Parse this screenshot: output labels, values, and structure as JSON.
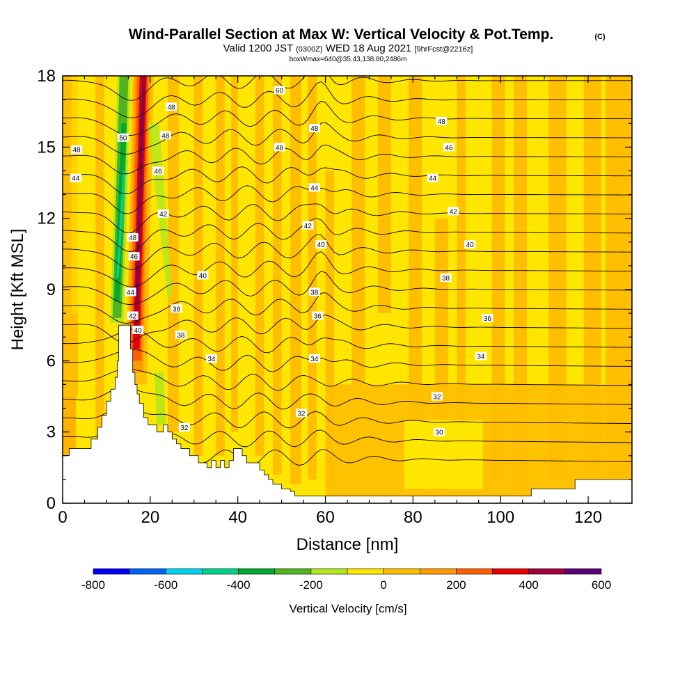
{
  "chart_data": {
    "type": "heatmap",
    "title": "Wind-Parallel Section at Max W: Vertical Velocity & Pot.Temp.",
    "title_mark": "(C)",
    "subtitle_parts": [
      "Valid 1200 JST",
      "(0300Z)",
      "WED 18 Aug 2021",
      "[9hrFcst@2216z]"
    ],
    "subtitle2": "boxWmax=640@35.43,138.80,2486m",
    "xlabel": "Distance [nm]",
    "ylabel": "Height [Kft MSL]",
    "xlim": [
      0,
      130
    ],
    "ylim": [
      0,
      18
    ],
    "xticks": [
      0,
      20,
      40,
      60,
      80,
      100,
      120
    ],
    "xtick_labels": [
      "0",
      "20",
      "40",
      "60",
      "80",
      "100",
      "120"
    ],
    "yticks": [
      0,
      3,
      6,
      9,
      12,
      15,
      18
    ],
    "ytick_labels": [
      "0",
      "3",
      "6",
      "9",
      "12",
      "15",
      "18"
    ],
    "colorbar": {
      "label": "Vertical Velocity [cm/s]",
      "colors": [
        "#0000f0",
        "#0064f0",
        "#00d2f0",
        "#00d28c",
        "#00aa32",
        "#50b41e",
        "#b4e61e",
        "#ffe600",
        "#ffbe00",
        "#ff9b00",
        "#ff5f00",
        "#e60000",
        "#a0003c",
        "#5a0078"
      ],
      "tick_values": [
        -800,
        -600,
        -400,
        -200,
        0,
        200,
        400,
        600
      ],
      "tick_labels": [
        "-800",
        "-600",
        "-400",
        "-200",
        "0",
        "200",
        "400",
        "600"
      ]
    },
    "terrain": [
      [
        0,
        2
      ],
      [
        1.5,
        2
      ],
      [
        1.5,
        2.3
      ],
      [
        6.5,
        2.3
      ],
      [
        6.5,
        2.7
      ],
      [
        8,
        2.7
      ],
      [
        8,
        3.2
      ],
      [
        9,
        3.2
      ],
      [
        9,
        3.7
      ],
      [
        10,
        3.7
      ],
      [
        10,
        4.3
      ],
      [
        11,
        4.3
      ],
      [
        11,
        4.8
      ],
      [
        12,
        4.8
      ],
      [
        12,
        5.3
      ],
      [
        12.5,
        5.3
      ],
      [
        12.5,
        6
      ],
      [
        12.8,
        6
      ],
      [
        12.8,
        7.5
      ],
      [
        15.5,
        7.5
      ],
      [
        15.5,
        6.5
      ],
      [
        16,
        6.5
      ],
      [
        16,
        5.5
      ],
      [
        16.5,
        5.5
      ],
      [
        16.5,
        5
      ],
      [
        17,
        5
      ],
      [
        17,
        4.6
      ],
      [
        17.5,
        4.6
      ],
      [
        17.5,
        4.2
      ],
      [
        18.5,
        4.2
      ],
      [
        18.5,
        3.6
      ],
      [
        19.5,
        3.6
      ],
      [
        19.5,
        3.3
      ],
      [
        21.5,
        3.3
      ],
      [
        21.5,
        3
      ],
      [
        23,
        3
      ],
      [
        23,
        3.3
      ],
      [
        24,
        3.3
      ],
      [
        24,
        3
      ],
      [
        25,
        3
      ],
      [
        25,
        2.7
      ],
      [
        26,
        2.7
      ],
      [
        26,
        2.5
      ],
      [
        27,
        2.5
      ],
      [
        27,
        2.3
      ],
      [
        29,
        2.3
      ],
      [
        29,
        2
      ],
      [
        31,
        2
      ],
      [
        31,
        1.7
      ],
      [
        33,
        1.7
      ],
      [
        33,
        1.5
      ],
      [
        34,
        1.5
      ],
      [
        34,
        1.8
      ],
      [
        35,
        1.8
      ],
      [
        35,
        1.5
      ],
      [
        36,
        1.5
      ],
      [
        36,
        1.8
      ],
      [
        37,
        1.8
      ],
      [
        37,
        1.5
      ],
      [
        38,
        1.5
      ],
      [
        38,
        1.8
      ],
      [
        39,
        1.8
      ],
      [
        39,
        2.3
      ],
      [
        41,
        2.3
      ],
      [
        41,
        2
      ],
      [
        42,
        2
      ],
      [
        42,
        1.7
      ],
      [
        45,
        1.7
      ],
      [
        45,
        1.4
      ],
      [
        46,
        1.4
      ],
      [
        46,
        1.2
      ],
      [
        47,
        1.2
      ],
      [
        47,
        1
      ],
      [
        48,
        1
      ],
      [
        48,
        0.8
      ],
      [
        50,
        0.8
      ],
      [
        50,
        0.6
      ],
      [
        52,
        0.6
      ],
      [
        52,
        0.5
      ],
      [
        53,
        0.5
      ],
      [
        53,
        0.3
      ],
      [
        60,
        0.3
      ],
      [
        60,
        0.3
      ],
      [
        107,
        0.3
      ],
      [
        107,
        0.6
      ],
      [
        112,
        0.6
      ],
      [
        112,
        0.6
      ],
      [
        117,
        0.6
      ],
      [
        117,
        1
      ],
      [
        130,
        1
      ]
    ],
    "contour_levels": [
      30,
      31,
      32,
      33,
      34,
      35,
      36,
      37,
      38,
      39,
      40,
      41,
      42,
      43,
      44,
      45,
      46,
      47,
      48,
      49,
      50
    ],
    "contour_labels": [
      {
        "text": "60",
        "x": 49.5,
        "y": 17.4
      },
      {
        "text": "50",
        "x": 13.8,
        "y": 15.4
      },
      {
        "text": "48",
        "x": 24.8,
        "y": 16.7
      },
      {
        "text": "48",
        "x": 23.5,
        "y": 15.5
      },
      {
        "text": "48",
        "x": 3.2,
        "y": 14.9
      },
      {
        "text": "48",
        "x": 57.5,
        "y": 15.8
      },
      {
        "text": "48",
        "x": 86.5,
        "y": 16.1
      },
      {
        "text": "48",
        "x": 49.5,
        "y": 15.0
      },
      {
        "text": "46",
        "x": 21.8,
        "y": 14.0
      },
      {
        "text": "46",
        "x": 88.2,
        "y": 15.0
      },
      {
        "text": "46",
        "x": 16.3,
        "y": 10.4
      },
      {
        "text": "44",
        "x": 3.0,
        "y": 13.7
      },
      {
        "text": "44",
        "x": 57.5,
        "y": 13.3
      },
      {
        "text": "44",
        "x": 84.5,
        "y": 13.7
      },
      {
        "text": "44",
        "x": 15.5,
        "y": 8.9
      },
      {
        "text": "42",
        "x": 23.0,
        "y": 12.2
      },
      {
        "text": "42",
        "x": 56.0,
        "y": 11.7
      },
      {
        "text": "42",
        "x": 89.2,
        "y": 12.3
      },
      {
        "text": "48",
        "x": 16.0,
        "y": 11.2
      },
      {
        "text": "40",
        "x": 32.0,
        "y": 9.6
      },
      {
        "text": "40",
        "x": 59.0,
        "y": 10.9
      },
      {
        "text": "40",
        "x": 93.0,
        "y": 10.9
      },
      {
        "text": "42",
        "x": 16.0,
        "y": 7.9
      },
      {
        "text": "40",
        "x": 17.2,
        "y": 7.3
      },
      {
        "text": "38",
        "x": 26.0,
        "y": 8.2
      },
      {
        "text": "38",
        "x": 57.5,
        "y": 8.9
      },
      {
        "text": "38",
        "x": 87.5,
        "y": 9.5
      },
      {
        "text": "38",
        "x": 27.0,
        "y": 7.1
      },
      {
        "text": "36",
        "x": 58.2,
        "y": 7.9
      },
      {
        "text": "36",
        "x": 97.0,
        "y": 7.8
      },
      {
        "text": "34",
        "x": 34.0,
        "y": 6.1
      },
      {
        "text": "34",
        "x": 57.5,
        "y": 6.1
      },
      {
        "text": "34",
        "x": 95.5,
        "y": 6.2
      },
      {
        "text": "32",
        "x": 27.8,
        "y": 3.2
      },
      {
        "text": "32",
        "x": 54.5,
        "y": 3.8
      },
      {
        "text": "32",
        "x": 85.5,
        "y": 4.5
      },
      {
        "text": "30",
        "x": 86.0,
        "y": 3.0
      }
    ]
  }
}
